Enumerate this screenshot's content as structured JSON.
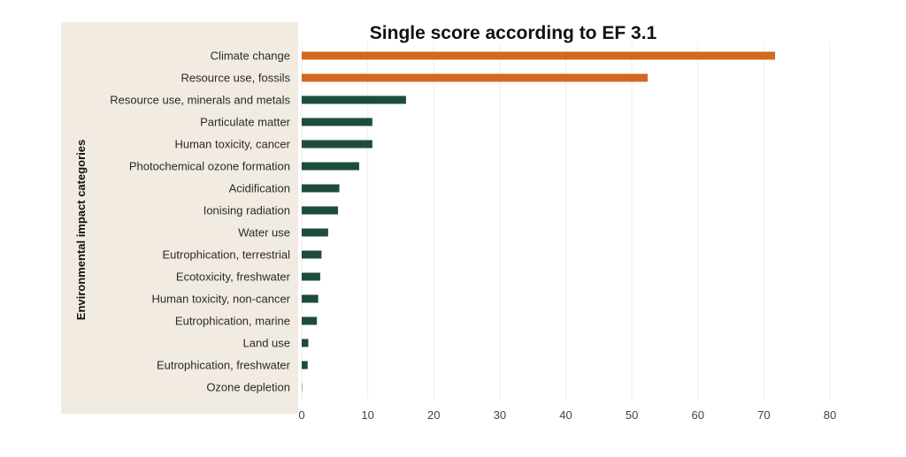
{
  "chart_data": {
    "type": "bar",
    "orientation": "horizontal",
    "title": "Single score according to EF 3.1",
    "xlabel": "",
    "ylabel": "Environmental impact categories",
    "categories": [
      "Climate change",
      "Resource use, fossils",
      "Resource use, minerals and metals",
      "Particulate matter",
      "Human toxicity, cancer",
      "Photochemical ozone formation",
      "Acidification",
      "Ionising radiation",
      "Water use",
      "Eutrophication, terrestrial",
      "Ecotoxicity, freshwater",
      "Human toxicity, non-cancer",
      "Eutrophication, marine",
      "Land use",
      "Eutrophication, freshwater",
      "Ozone depletion"
    ],
    "values": [
      71.7,
      52.4,
      15.8,
      10.7,
      10.7,
      8.7,
      5.7,
      5.5,
      4.0,
      3.0,
      2.8,
      2.5,
      2.3,
      1.0,
      0.9,
      0.05
    ],
    "bar_colors": [
      "#d2691e",
      "#d2691e",
      "#1d4b40",
      "#1d4b40",
      "#1d4b40",
      "#1d4b40",
      "#1d4b40",
      "#1d4b40",
      "#1d4b40",
      "#1d4b40",
      "#1d4b40",
      "#1d4b40",
      "#1d4b40",
      "#1d4b40",
      "#1d4b40",
      "#1d4b40"
    ],
    "xlim": [
      0,
      80
    ],
    "xticks": [
      0,
      10,
      20,
      30,
      40,
      50,
      60,
      70,
      80
    ],
    "grid": "vertical",
    "legend": "none"
  },
  "colors": {
    "label_panel": "#f1ebe1",
    "highlight_bar": "#d2691e",
    "default_bar": "#1d4b40",
    "gridline": "#eeeeee"
  }
}
